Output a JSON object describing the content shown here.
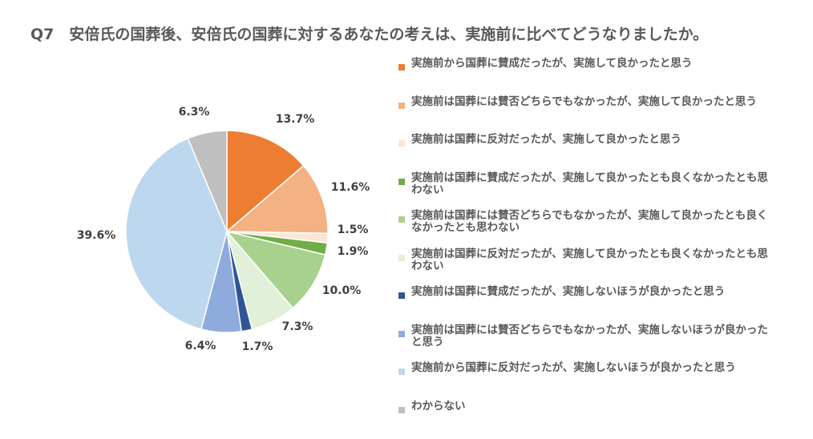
{
  "title": "Q7　安倍氏の国葬後、安倍氏の国葬に対するあなたの考えは、実施前に比べてどうなりましたか。",
  "chart_data": {
    "type": "pie",
    "start_angle_deg": 0,
    "direction": "clockwise",
    "legend_position": "right",
    "slices": [
      {
        "label": "実施前から国葬に賛成だったが、実施して良かったと思う",
        "value": 13.7,
        "value_label": "13.7%",
        "color": "#ED7D31"
      },
      {
        "label": "実施前は国葬には賛否どちらでもなかったが、実施して良かったと思う",
        "value": 11.6,
        "value_label": "11.6%",
        "color": "#F4B183"
      },
      {
        "label": "実施前は国葬に反対だったが、実施して良かったと思う",
        "value": 1.5,
        "value_label": "1.5%",
        "color": "#FBE5D6"
      },
      {
        "label": "実施前は国葬に賛成だったが、実施して良かったとも良くなかったとも思わない",
        "value": 1.9,
        "value_label": "1.9%",
        "color": "#70AD47"
      },
      {
        "label": "実施前は国葬には賛否どちらでもなかったが、実施して良かったとも良くなかったとも思わない",
        "value": 10.0,
        "value_label": "10.0%",
        "color": "#A9D18E"
      },
      {
        "label": "実施前は国葬に反対だったが、実施して良かったとも良くなかったとも思わない",
        "value": 7.3,
        "value_label": "7.3%",
        "color": "#E2F0D9"
      },
      {
        "label": "実施前は国葬に賛成だったが、実施しないほうが良かったと思う",
        "value": 1.7,
        "value_label": "1.7%",
        "color": "#2F5597"
      },
      {
        "label": "実施前は国葬には賛否どちらでもなかったが、実施しないほうが良かったと思う",
        "value": 6.4,
        "value_label": "6.4%",
        "color": "#8FAADC"
      },
      {
        "label": "実施前から国葬に反対だったが、実施しないほうが良かったと思う",
        "value": 39.6,
        "value_label": "39.6%",
        "color": "#BDD7EE"
      },
      {
        "label": "わからない",
        "value": 6.3,
        "value_label": "6.3%",
        "color": "#BFBFBF"
      }
    ]
  }
}
